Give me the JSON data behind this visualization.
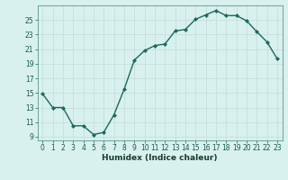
{
  "x": [
    0,
    1,
    2,
    3,
    4,
    5,
    6,
    7,
    8,
    9,
    10,
    11,
    12,
    13,
    14,
    15,
    16,
    17,
    18,
    19,
    20,
    21,
    22,
    23
  ],
  "y": [
    14.9,
    13.0,
    13.0,
    10.5,
    10.5,
    9.3,
    9.6,
    12.0,
    15.5,
    19.5,
    20.8,
    21.5,
    21.7,
    23.5,
    23.7,
    25.1,
    25.7,
    26.3,
    25.6,
    25.6,
    24.9,
    23.4,
    22.0,
    19.7
  ],
  "line_color": "#1a6b5a",
  "marker": "D",
  "marker_size": 2.0,
  "bg_color": "#d8f0ee",
  "grid_color": "#c8e0dc",
  "xlabel": "Humidex (Indice chaleur)",
  "ylim": [
    8.5,
    27.0
  ],
  "yticks": [
    9,
    11,
    13,
    15,
    17,
    19,
    21,
    23,
    25
  ],
  "xticks": [
    0,
    1,
    2,
    3,
    4,
    5,
    6,
    7,
    8,
    9,
    10,
    11,
    12,
    13,
    14,
    15,
    16,
    17,
    18,
    19,
    20,
    21,
    22,
    23
  ],
  "tick_fontsize": 5.5,
  "xlabel_fontsize": 6.5,
  "line_width": 1.0
}
